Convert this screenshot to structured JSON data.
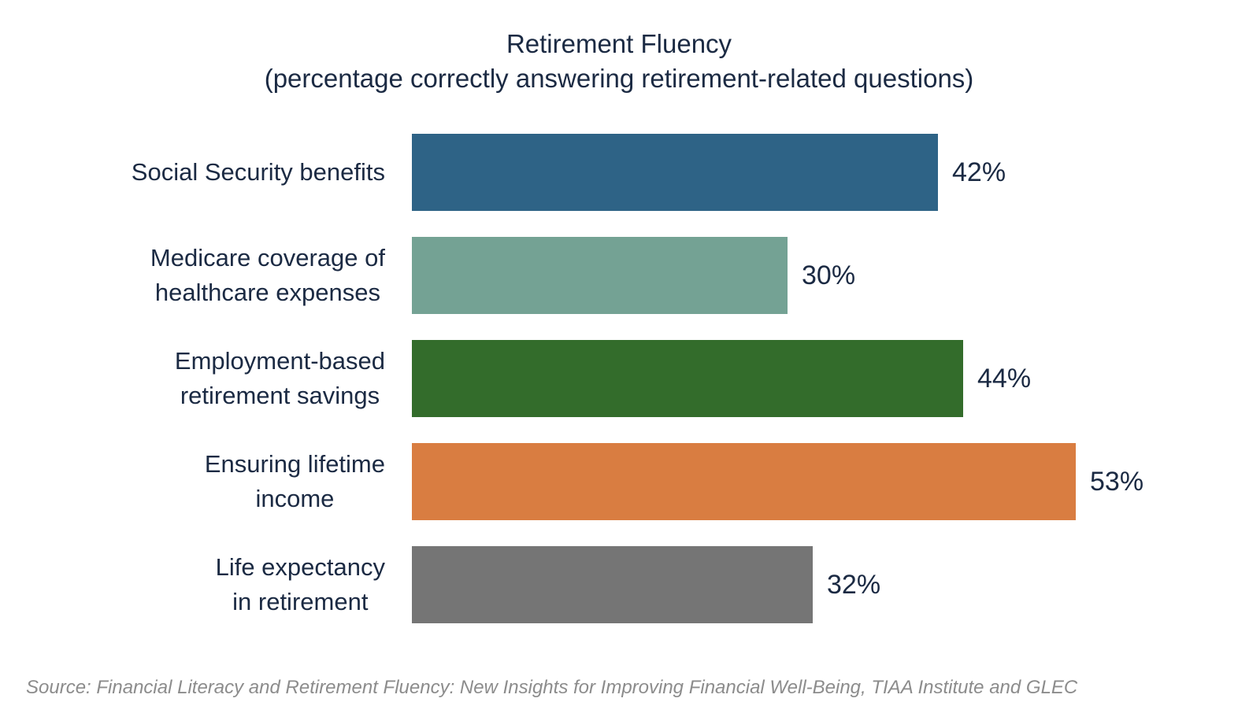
{
  "chart": {
    "title": "Retirement Fluency",
    "subtitle": "(percentage correctly answering retirement-related questions)",
    "source": "Source: Financial Literacy and Retirement Fluency: New Insights for Improving Financial Well-Being, TIAA Institute and GLEC",
    "text_color": "#1B2A43",
    "source_color": "#8C8C8C",
    "background_color": "#FFFFFF"
  },
  "chart_data": {
    "type": "bar",
    "orientation": "horizontal",
    "title": "Retirement Fluency",
    "subtitle": "(percentage correctly answering retirement-related questions)",
    "categories": [
      "Social Security benefits",
      "Medicare coverage of healthcare expenses",
      "Employment-based retirement savings",
      "Ensuring lifetime income",
      "Life expectancy in retirement"
    ],
    "category_lines": [
      [
        "Social Security benefits"
      ],
      [
        "Medicare coverage of",
        "healthcare expenses"
      ],
      [
        "Employment-based",
        "retirement savings"
      ],
      [
        "Ensuring lifetime",
        "income"
      ],
      [
        "Life expectancy",
        "in retirement"
      ]
    ],
    "values": [
      42,
      30,
      44,
      53,
      32
    ],
    "value_labels": [
      "42%",
      "30%",
      "44%",
      "53%",
      "32%"
    ],
    "bar_colors": [
      "#2E6386",
      "#74A294",
      "#336C2B",
      "#D97D41",
      "#757575"
    ],
    "unit": "%",
    "xlim": [
      0,
      60
    ],
    "grid": false,
    "legend": "none",
    "value_label_position": "right-of-bar",
    "source": "Source: Financial Literacy and Retirement Fluency: New Insights for Improving Financial Well-Being, TIAA Institute and GLEC"
  }
}
